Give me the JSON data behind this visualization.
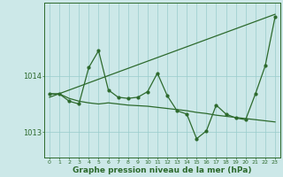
{
  "background_color": "#cce8e8",
  "plot_bg_color": "#cce8e8",
  "grid_color": "#99cccc",
  "line_color": "#2d6a2d",
  "title": "Graphe pression niveau de la mer (hPa)",
  "title_fontsize": 6.5,
  "xlim": [
    -0.5,
    23.5
  ],
  "ylim": [
    1012.55,
    1015.3
  ],
  "yticks": [
    1013,
    1014
  ],
  "xticks": [
    0,
    1,
    2,
    3,
    4,
    5,
    6,
    7,
    8,
    9,
    10,
    11,
    12,
    13,
    14,
    15,
    16,
    17,
    18,
    19,
    20,
    21,
    22,
    23
  ],
  "trend_x": [
    0,
    23
  ],
  "trend_y": [
    1013.62,
    1015.1
  ],
  "series_jagged_x": [
    0,
    1,
    2,
    3,
    4,
    5,
    6,
    7,
    8,
    9,
    10,
    11,
    12,
    13,
    14,
    15,
    16,
    17,
    18,
    19,
    20,
    21,
    22,
    23
  ],
  "series_jagged_y": [
    1013.68,
    1013.68,
    1013.55,
    1013.5,
    1014.15,
    1014.45,
    1013.75,
    1013.62,
    1013.6,
    1013.62,
    1013.72,
    1014.05,
    1013.65,
    1013.38,
    1013.32,
    1012.88,
    1013.02,
    1013.48,
    1013.32,
    1013.25,
    1013.22,
    1013.68,
    1014.18,
    1015.05
  ],
  "series_smooth_x": [
    0,
    1,
    2,
    3,
    4,
    5,
    6,
    7,
    8,
    9,
    10,
    11,
    12,
    13,
    14,
    15,
    16,
    17,
    18,
    19,
    20,
    21,
    22,
    23
  ],
  "series_smooth_y": [
    1013.68,
    1013.68,
    1013.6,
    1013.55,
    1013.52,
    1013.5,
    1013.52,
    1013.5,
    1013.48,
    1013.47,
    1013.46,
    1013.44,
    1013.42,
    1013.4,
    1013.38,
    1013.35,
    1013.33,
    1013.3,
    1013.28,
    1013.26,
    1013.24,
    1013.22,
    1013.2,
    1013.18
  ]
}
